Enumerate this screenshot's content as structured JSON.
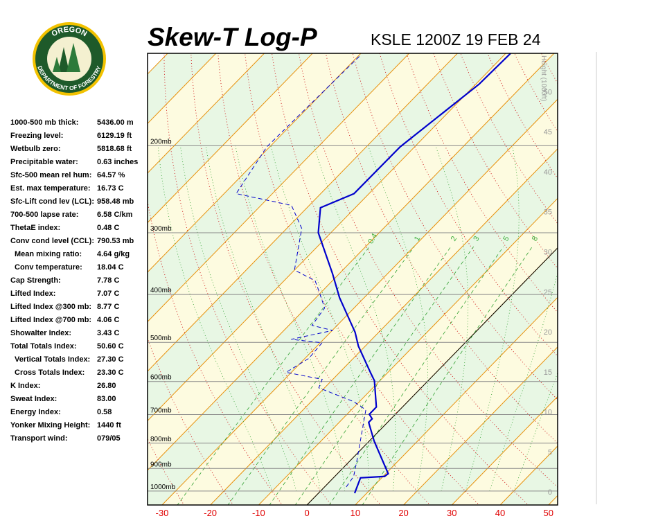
{
  "header": {
    "title": "Skew-T Log-P",
    "subtitle": "KSLE 1200Z 19 FEB 24"
  },
  "logo": {
    "top": "OREGON",
    "bottom": "DEPARTMENT OF FORESTRY"
  },
  "indices": [
    [
      "1000-500 mb thick:",
      "5436.00 m"
    ],
    [
      "Freezing level:",
      "6129.19 ft"
    ],
    [
      "Wetbulb zero:",
      "5818.68 ft"
    ],
    [
      "Precipitable water:",
      "0.63 inches"
    ],
    [
      "Sfc-500 mean rel hum:",
      "64.57 %"
    ],
    [
      "Est. max temperature:",
      "16.73 C"
    ],
    [
      "Sfc-Lift cond lev (LCL):",
      "958.48 mb"
    ],
    [
      "700-500 lapse rate:",
      "6.58 C/km"
    ],
    [
      "ThetaE index:",
      "0.48 C"
    ],
    [
      "Conv cond level (CCL):",
      "790.53 mb"
    ],
    [
      "Mean mixing ratio:",
      "4.64 g/kg"
    ],
    [
      "Conv temperature:",
      "18.04 C"
    ],
    [
      "Cap Strength:",
      "7.78 C"
    ],
    [
      "Lifted Index:",
      "7.07 C"
    ],
    [
      "Lifted Index @300 mb:",
      "8.77 C"
    ],
    [
      "Lifted Index @700 mb:",
      "4.06 C"
    ],
    [
      "Showalter Index:",
      "3.43 C"
    ],
    [
      "Total Totals Index:",
      "50.60 C"
    ],
    [
      "Vertical Totals Index:",
      "27.30 C"
    ],
    [
      "Cross Totals Index:",
      "23.30 C"
    ],
    [
      "K Index:",
      "26.80"
    ],
    [
      "Sweat Index:",
      "83.00"
    ],
    [
      "Energy Index:",
      "0.58"
    ],
    [
      "Yonker Mixing Height:",
      "1440 ft"
    ],
    [
      "Transport wind:",
      "079/05"
    ]
  ],
  "chart_data": {
    "type": "skewt",
    "xlim": [
      -33,
      51.9
    ],
    "xticks": [
      -30,
      -20,
      -10,
      0,
      10,
      20,
      30,
      40,
      50
    ],
    "ylim": [
      1067,
      130
    ],
    "ylog": true,
    "yticks": [
      {
        "value": 200,
        "label": "200mb"
      },
      {
        "value": 300,
        "label": "300mb"
      },
      {
        "value": 400,
        "label": "400mb"
      },
      {
        "value": 500,
        "label": "500mb"
      },
      {
        "value": 600,
        "label": "600mb"
      },
      {
        "value": 700,
        "label": "700mb"
      },
      {
        "value": 800,
        "label": "800mb"
      },
      {
        "value": 900,
        "label": "900mb"
      },
      {
        "value": 1000,
        "label": "1000mb"
      }
    ],
    "height_label": "Height (1000ft)",
    "height_lim": [
      -1.64,
      54.8
    ],
    "height_ticks": [
      0,
      5,
      10,
      15,
      20,
      25,
      30,
      35,
      40,
      45,
      50
    ],
    "mixing_ratios": [
      0.4,
      1,
      2,
      3,
      5,
      8
    ],
    "series": [
      {
        "color": "#0000cc",
        "dash": false,
        "pressure": [
          1010,
          940,
          934,
          922,
          792,
          726,
          714,
          699,
          676,
          598,
          579,
          509,
          477,
          406,
          363,
          300,
          267,
          250,
          201,
          150,
          130
        ],
        "values": [
          7.5,
          5.6,
          10.3,
          10.5,
          1.0,
          -3.9,
          -3.9,
          -5.4,
          -5.4,
          -11.1,
          -13.2,
          -21.4,
          -24.9,
          -35.1,
          -41.4,
          -52.6,
          -57.2,
          -53.1,
          -53.0,
          -49.3,
          -49.0
        ]
      },
      {
        "color": "#0000cc",
        "dash": true,
        "pressure": [
          981,
          934,
          868,
          685,
          659,
          618,
          594,
          575,
          539,
          501,
          493,
          473,
          462,
          426,
          393,
          375,
          357,
          294,
          264,
          250,
          201,
          131
        ],
        "values": [
          4.5,
          3.9,
          1.4,
          -7.0,
          -11.2,
          -21.2,
          -22.2,
          -31.1,
          -29.2,
          -29.6,
          -36.7,
          -29.9,
          -35.2,
          -36.1,
          -40.8,
          -43.6,
          -50.0,
          -56.9,
          -63.7,
          -77.5,
          -80.6,
          -79.7
        ]
      }
    ]
  }
}
